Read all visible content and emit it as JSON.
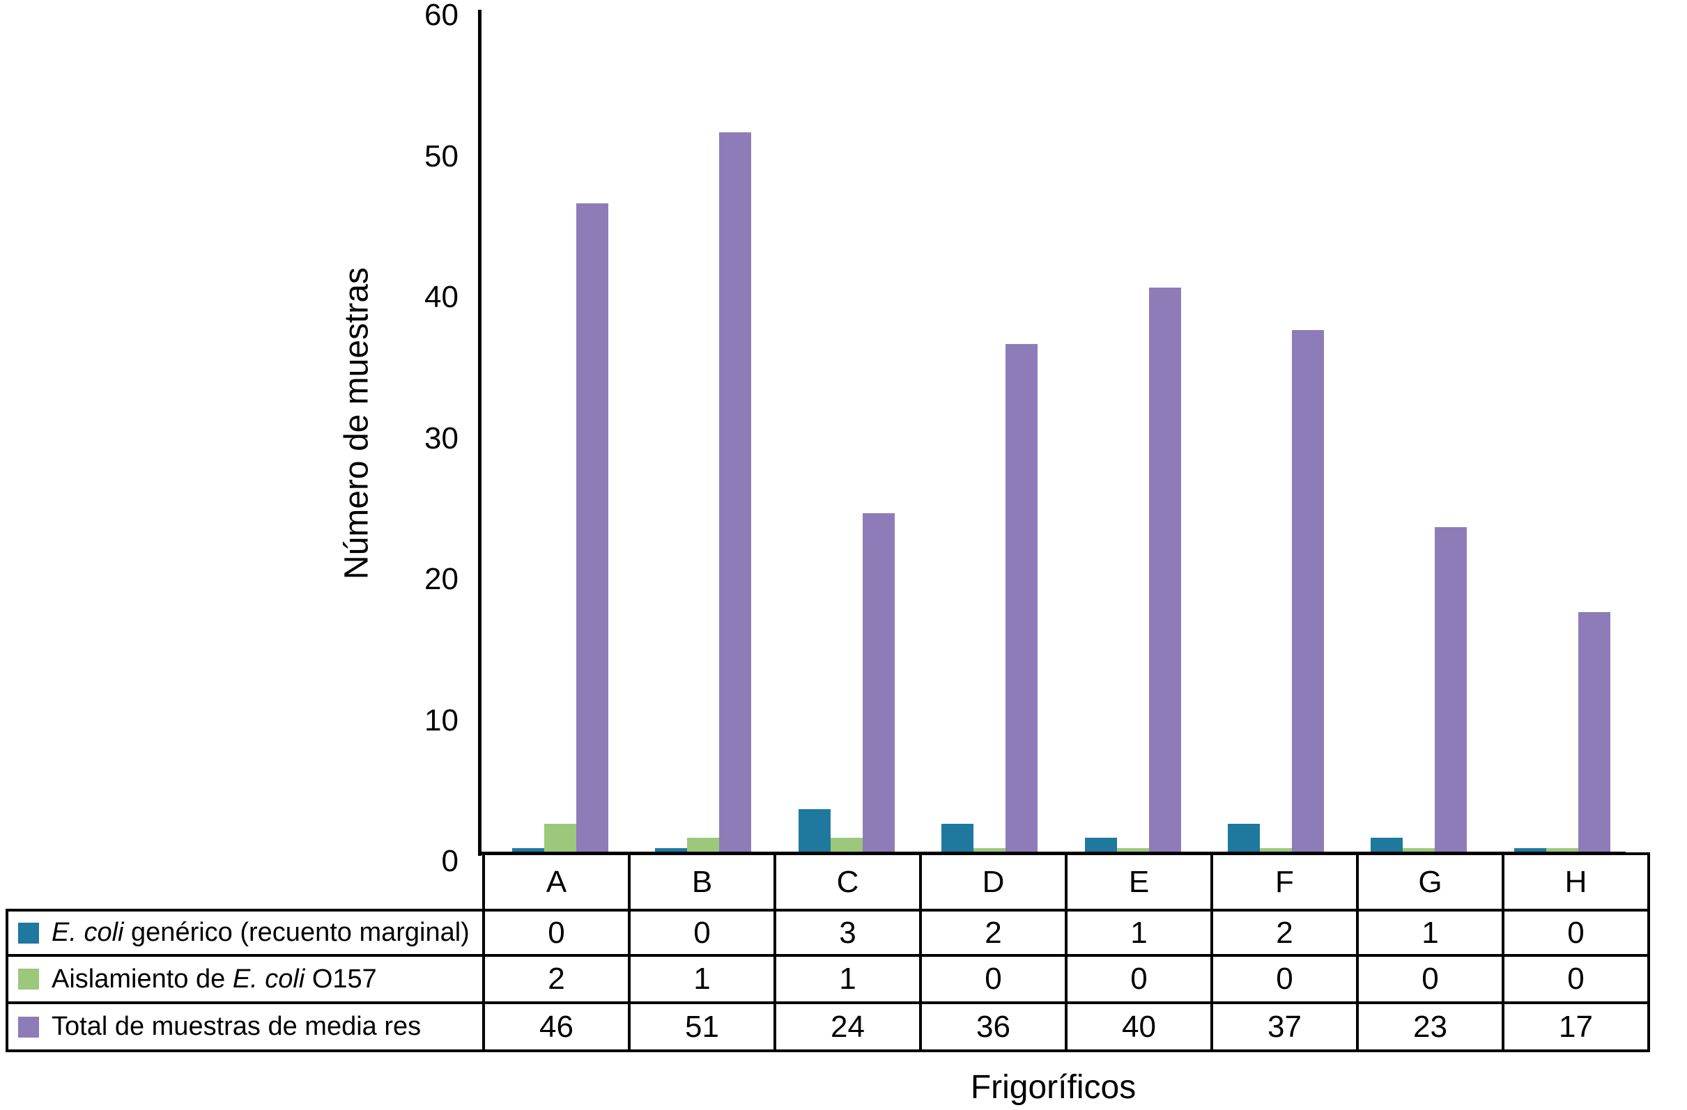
{
  "chart_data": {
    "type": "bar",
    "title": "",
    "xlabel": "Frigoríficos",
    "ylabel": "Número de muestras",
    "categories": [
      "A",
      "B",
      "C",
      "D",
      "E",
      "F",
      "G",
      "H"
    ],
    "y_ticks": [
      0,
      10,
      20,
      30,
      40,
      50,
      60
    ],
    "ylim": [
      0,
      60
    ],
    "grid": false,
    "legend_position": "table-left",
    "series": [
      {
        "name_pre": "",
        "name_italic": "E. coli",
        "name_post": " genérico (recuento marginal)",
        "color": "#1f789e",
        "values": [
          0,
          0,
          3,
          2,
          1,
          2,
          1,
          0
        ]
      },
      {
        "name_pre": "Aislamiento de ",
        "name_italic": "E. coli",
        "name_post": " O157",
        "color": "#9cc87b",
        "values": [
          2,
          1,
          1,
          0,
          0,
          0,
          0,
          0
        ]
      },
      {
        "name_pre": "Total de muestras de media res",
        "name_italic": "",
        "name_post": "",
        "color": "#8e7cb8",
        "values": [
          46,
          51,
          24,
          36,
          40,
          37,
          23,
          17
        ]
      }
    ]
  }
}
